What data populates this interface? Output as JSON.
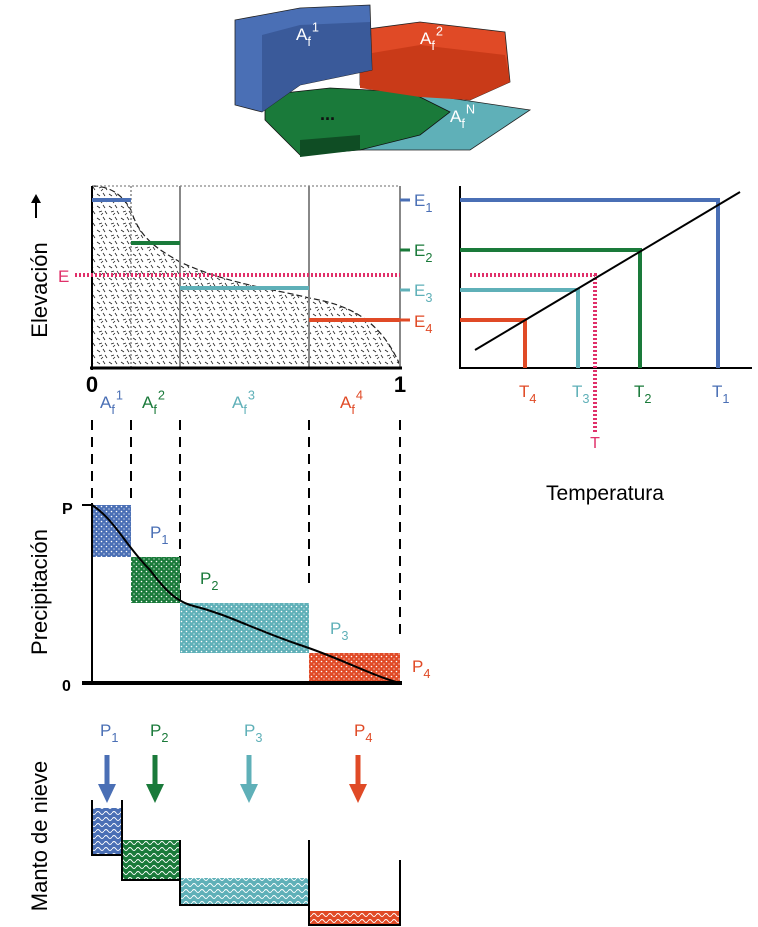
{
  "block_diagram": {
    "labels": [
      {
        "base": "A",
        "sub": "f",
        "sup": "1"
      },
      {
        "base": "A",
        "sub": "f",
        "sup": "2"
      },
      {
        "base": "A",
        "sub": "f",
        "sup": "N"
      }
    ],
    "ellipsis": "..."
  },
  "elevation_panel": {
    "axis_label": "Elevación",
    "e_marker": "E",
    "x_start": "0",
    "x_end": "1",
    "area_labels": [
      {
        "base": "A",
        "sub": "f",
        "sup": "1"
      },
      {
        "base": "A",
        "sub": "f",
        "sup": "2"
      },
      {
        "base": "A",
        "sub": "f",
        "sup": "3"
      },
      {
        "base": "A",
        "sub": "f",
        "sup": "4"
      }
    ],
    "band_labels": [
      {
        "base": "E",
        "sub": "1"
      },
      {
        "base": "E",
        "sub": "2"
      },
      {
        "base": "E",
        "sub": "3"
      },
      {
        "base": "E",
        "sub": "4"
      }
    ]
  },
  "temperature_panel": {
    "axis_label": "Temperatura",
    "t_marker": "T",
    "t_labels": [
      {
        "base": "T",
        "sub": "4"
      },
      {
        "base": "T",
        "sub": "3"
      },
      {
        "base": "T",
        "sub": "2"
      },
      {
        "base": "T",
        "sub": "1"
      }
    ]
  },
  "precipitation_panel": {
    "axis_label": "Precipitación",
    "y_top": "P",
    "y_bottom": "0",
    "p_labels": [
      {
        "base": "P",
        "sub": "1"
      },
      {
        "base": "P",
        "sub": "2"
      },
      {
        "base": "P",
        "sub": "3"
      },
      {
        "base": "P",
        "sub": "4"
      }
    ]
  },
  "snowpack_panel": {
    "axis_label": "Manto de nieve",
    "p_labels": [
      {
        "base": "P",
        "sub": "1"
      },
      {
        "base": "P",
        "sub": "2"
      },
      {
        "base": "P",
        "sub": "3"
      },
      {
        "base": "P",
        "sub": "4"
      }
    ]
  }
}
